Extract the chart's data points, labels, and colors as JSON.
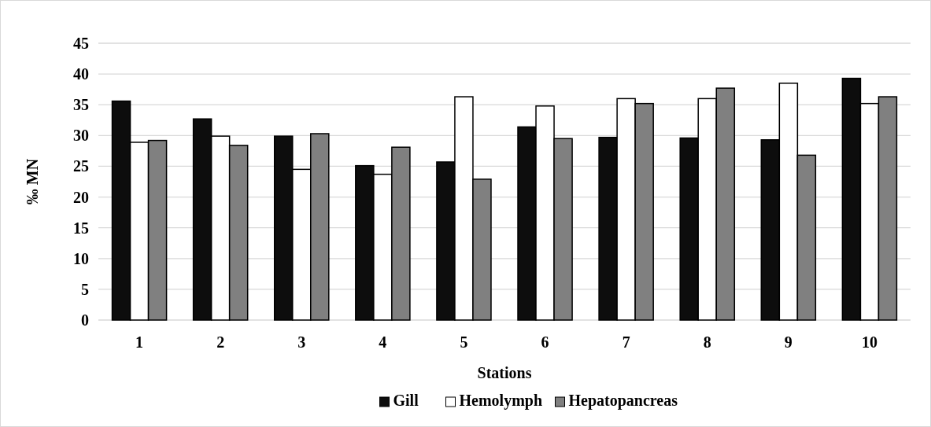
{
  "chart_data": {
    "type": "bar",
    "xlabel": "Stations",
    "ylabel": "‰ MN",
    "categories": [
      "1",
      "2",
      "3",
      "4",
      "5",
      "6",
      "7",
      "8",
      "9",
      "10"
    ],
    "series": [
      {
        "name": "Gill",
        "color": "#0d0d0d",
        "values": [
          35.6,
          32.7,
          29.9,
          25.1,
          25.7,
          31.4,
          29.7,
          29.6,
          29.3,
          39.3
        ]
      },
      {
        "name": "Hemolymph",
        "color": "#ffffff",
        "values": [
          28.9,
          29.9,
          24.5,
          23.7,
          36.3,
          34.8,
          36.0,
          36.0,
          38.5,
          35.2
        ]
      },
      {
        "name": "Hepatopancreas",
        "color": "#808080",
        "values": [
          29.2,
          28.4,
          30.3,
          28.1,
          22.9,
          29.5,
          35.2,
          37.7,
          26.8,
          36.3
        ]
      }
    ],
    "ylim": [
      0,
      45
    ],
    "yticks": [
      0,
      5,
      10,
      15,
      20,
      25,
      30,
      35,
      40,
      45
    ],
    "grid": "y",
    "legend": "bottom"
  }
}
